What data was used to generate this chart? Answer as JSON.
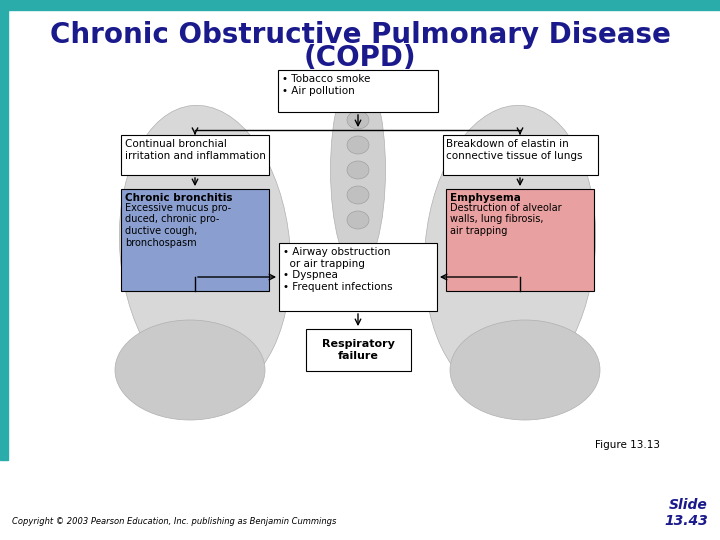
{
  "title_line1": "Chronic Obstructive Pulmonary Disease",
  "title_line2": "(COPD)",
  "title_color": "#1a1a8c",
  "title_fontsize": 20,
  "bg_color": "#ffffff",
  "teal_bar_color": "#2aacaa",
  "teal_bar_left_color": "#1e7a78",
  "copyright_text": "Copyright © 2003 Pearson Education, Inc. publishing as Benjamin Cummings",
  "figure_label": "Figure 13.13",
  "slide_text": "Slide\n13.43",
  "box_top_text": "• Tobacco smoke\n• Air pollution",
  "box_left_text": "Continual bronchial\nirritation and inflammation",
  "box_right_text": "Breakdown of elastin in\nconnective tissue of lungs",
  "box_bronchitis_title": "Chronic bronchitis",
  "box_bronchitis_body": "Excessive mucus pro-\nduced, chronic pro-\nductive cough,\nbronchospasm",
  "box_emphysema_title": "Emphysema",
  "box_emphysema_body": "Destruction of alveolar\nwalls, lung fibrosis,\nair trapping",
  "box_middle_text": "• Airway obstruction\n  or air trapping\n• Dyspnea\n• Frequent infections",
  "box_bottom_title": "Respiratory\nfailure",
  "box_bronchitis_color": "#8a9fd0",
  "box_emphysema_color": "#e8a0a0",
  "lung_color": "#d8d8d8",
  "lung_edge_color": "#b0b0b0"
}
